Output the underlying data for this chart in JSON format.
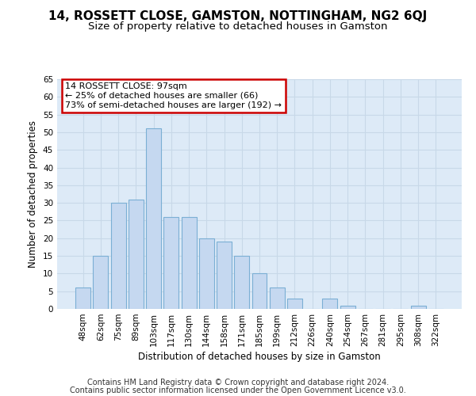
{
  "title": "14, ROSSETT CLOSE, GAMSTON, NOTTINGHAM, NG2 6QJ",
  "subtitle": "Size of property relative to detached houses in Gamston",
  "xlabel": "Distribution of detached houses by size in Gamston",
  "ylabel": "Number of detached properties",
  "bar_labels": [
    "48sqm",
    "62sqm",
    "75sqm",
    "89sqm",
    "103sqm",
    "117sqm",
    "130sqm",
    "144sqm",
    "158sqm",
    "171sqm",
    "185sqm",
    "199sqm",
    "212sqm",
    "226sqm",
    "240sqm",
    "254sqm",
    "267sqm",
    "281sqm",
    "295sqm",
    "308sqm",
    "322sqm"
  ],
  "bar_values": [
    6,
    15,
    30,
    31,
    51,
    26,
    26,
    20,
    19,
    15,
    10,
    6,
    3,
    0,
    3,
    1,
    0,
    0,
    0,
    1,
    0
  ],
  "bar_color": "#c5d8f0",
  "bar_edge_color": "#7bafd4",
  "annotation_title": "14 ROSSETT CLOSE: 97sqm",
  "annotation_line1": "← 25% of detached houses are smaller (66)",
  "annotation_line2": "73% of semi-detached houses are larger (192) →",
  "annotation_box_color": "#ffffff",
  "annotation_box_edge": "#cc0000",
  "ylim": [
    0,
    65
  ],
  "yticks": [
    0,
    5,
    10,
    15,
    20,
    25,
    30,
    35,
    40,
    45,
    50,
    55,
    60,
    65
  ],
  "grid_color": "#c8d8e8",
  "bg_color": "#ddeaf7",
  "footer_line1": "Contains HM Land Registry data © Crown copyright and database right 2024.",
  "footer_line2": "Contains public sector information licensed under the Open Government Licence v3.0.",
  "title_fontsize": 11,
  "subtitle_fontsize": 9.5,
  "axis_label_fontsize": 8.5,
  "tick_fontsize": 7.5,
  "footer_fontsize": 7
}
